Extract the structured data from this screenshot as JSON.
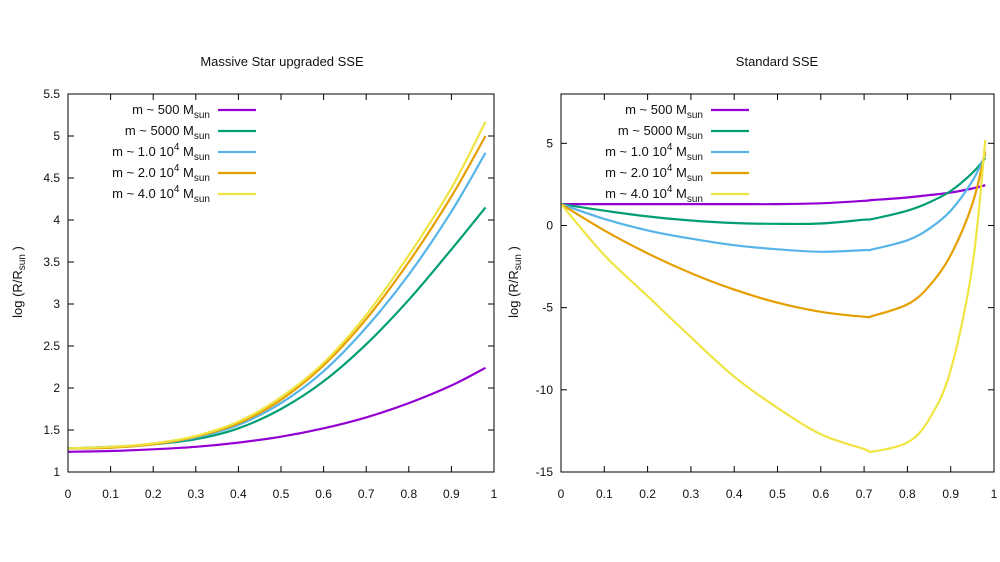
{
  "chart_data": [
    {
      "type": "line",
      "title": "Massive Star upgraded SSE",
      "xlabel": "",
      "ylabel": "log (R/R",
      "ylabel_sub": "sun",
      "ylabel_close": ")",
      "xlim": [
        0,
        1
      ],
      "ylim": [
        1,
        5.5
      ],
      "xticks": [
        "0",
        "0.1",
        "0.2",
        "0.3",
        "0.4",
        "0.5",
        "0.6",
        "0.7",
        "0.8",
        "0.9",
        "1"
      ],
      "yticks": [
        "1",
        "1.5",
        "2",
        "2.5",
        "3",
        "3.5",
        "4",
        "4.5",
        "5",
        "5.5"
      ],
      "grid": false,
      "legend_position": "top-left",
      "x": [
        0,
        0.1,
        0.2,
        0.3,
        0.4,
        0.5,
        0.6,
        0.7,
        0.8,
        0.9,
        0.98
      ],
      "series": [
        {
          "name": "m ~ 500 M",
          "name_sub": "sun",
          "color": "#9400d3",
          "values": [
            1.24,
            1.25,
            1.27,
            1.3,
            1.35,
            1.42,
            1.52,
            1.65,
            1.82,
            2.03,
            2.24
          ]
        },
        {
          "name": "m ~ 5000 M",
          "name_sub": "sun",
          "color": "#009e73",
          "values": [
            1.28,
            1.3,
            1.33,
            1.39,
            1.52,
            1.75,
            2.08,
            2.52,
            3.05,
            3.65,
            4.15
          ]
        },
        {
          "name": "m ~ 1.0 10",
          "name_sup": "4",
          "name_mid": " M",
          "name_sub": "sun",
          "color": "#56b4e9",
          "values": [
            1.28,
            1.29,
            1.33,
            1.41,
            1.56,
            1.82,
            2.2,
            2.72,
            3.35,
            4.1,
            4.8
          ]
        },
        {
          "name": "m ~ 2.0 10",
          "name_sup": "4",
          "name_mid": " M",
          "name_sub": "sun",
          "color": "#e69f00",
          "values": [
            1.28,
            1.29,
            1.33,
            1.42,
            1.58,
            1.86,
            2.27,
            2.82,
            3.5,
            4.28,
            5.0
          ]
        },
        {
          "name": "m ~ 4.0 10",
          "name_sup": "4",
          "name_mid": " M",
          "name_sub": "sun",
          "color": "#f0e442",
          "values": [
            1.28,
            1.3,
            1.34,
            1.43,
            1.6,
            1.89,
            2.3,
            2.87,
            3.58,
            4.38,
            5.17
          ]
        }
      ]
    },
    {
      "type": "line",
      "title": "Standard SSE",
      "xlabel": "",
      "ylabel": "log (R/R",
      "ylabel_sub": "sun",
      "ylabel_close": ")",
      "xlim": [
        0,
        1
      ],
      "ylim": [
        -15,
        8
      ],
      "xticks": [
        "0",
        "0.1",
        "0.2",
        "0.3",
        "0.4",
        "0.5",
        "0.6",
        "0.7",
        "0.8",
        "0.9",
        "1"
      ],
      "yticks": [
        "-15",
        "-10",
        "-5",
        "0",
        "5"
      ],
      "grid": false,
      "legend_position": "top-left",
      "x": [
        0,
        0.1,
        0.2,
        0.3,
        0.4,
        0.5,
        0.6,
        0.7,
        0.72,
        0.8,
        0.85,
        0.9,
        0.95,
        0.98
      ],
      "series": [
        {
          "name": "m ~ 500 M",
          "name_sub": "sun",
          "color": "#9400d3",
          "values": [
            1.3,
            1.3,
            1.3,
            1.3,
            1.3,
            1.3,
            1.35,
            1.5,
            1.55,
            1.7,
            1.85,
            2.0,
            2.25,
            2.45
          ]
        },
        {
          "name": "m ~ 5000 M",
          "name_sub": "sun",
          "color": "#009e73",
          "values": [
            1.3,
            0.9,
            0.55,
            0.3,
            0.15,
            0.1,
            0.12,
            0.35,
            0.4,
            0.9,
            1.4,
            2.1,
            3.2,
            4.1
          ]
        },
        {
          "name": "m ~ 1.0 10",
          "name_sup": "4",
          "name_mid": " M",
          "name_sub": "sun",
          "color": "#56b4e9",
          "values": [
            1.3,
            0.4,
            -0.3,
            -0.8,
            -1.2,
            -1.45,
            -1.6,
            -1.5,
            -1.45,
            -0.9,
            -0.2,
            0.9,
            2.7,
            4.3
          ]
        },
        {
          "name": "m ~ 2.0 10",
          "name_sup": "4",
          "name_mid": " M",
          "name_sub": "sun",
          "color": "#e69f00",
          "values": [
            1.3,
            -0.3,
            -1.7,
            -2.9,
            -3.9,
            -4.7,
            -5.25,
            -5.55,
            -5.5,
            -4.8,
            -3.7,
            -1.8,
            1.3,
            4.5
          ]
        },
        {
          "name": "m ~ 4.0 10",
          "name_sup": "4",
          "name_mid": " M",
          "name_sub": "sun",
          "color": "#f0e442",
          "values": [
            1.3,
            -1.8,
            -4.3,
            -6.8,
            -9.2,
            -11.1,
            -12.7,
            -13.6,
            -13.75,
            -13.2,
            -11.8,
            -8.8,
            -2.5,
            5.2
          ]
        }
      ]
    }
  ]
}
